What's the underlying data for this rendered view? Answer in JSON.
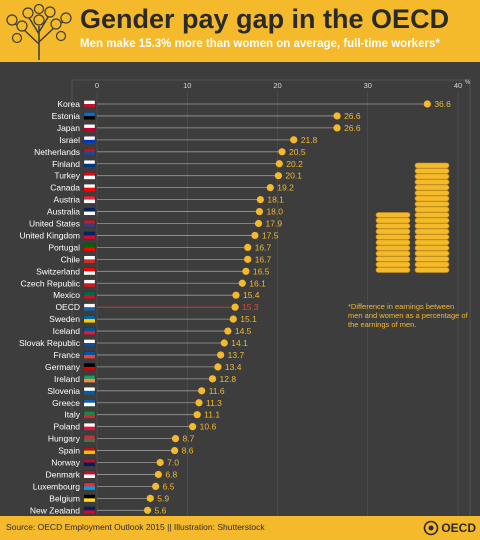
{
  "header": {
    "title": "Gender pay gap in the OECD",
    "subtitle": "Men make 15.3% more than women on average, full-time workers*"
  },
  "note": "*Difference in earnings between men and women as a percentage of the earnings of men.",
  "footer": {
    "source": "Source: OECD Employment Outlook 2015 || Illustration: Shutterstock",
    "logo_text": "OECD"
  },
  "colors": {
    "accent": "#f5ba2b",
    "background": "#3d3d3d",
    "highlight": "#e04a2a",
    "line": "#9a9a9a"
  },
  "chart_data": {
    "type": "scatter",
    "title": "Gender pay gap in the OECD",
    "xlim": [
      0,
      40
    ],
    "xticks": [
      0,
      10,
      20,
      30,
      40
    ],
    "xaxis_unit": "%",
    "highlight": "OECD",
    "categories": [
      "Korea",
      "Estonia",
      "Japan",
      "Israel",
      "Netherlands",
      "Finland",
      "Turkey",
      "Canada",
      "Austria",
      "Australia",
      "United States",
      "United Kingdom",
      "Portugal",
      "Chile",
      "Switzerland",
      "Czech Republic",
      "Mexico",
      "OECD",
      "Sweden",
      "Iceland",
      "Slovak Republic",
      "France",
      "Germany",
      "Ireland",
      "Slovenia",
      "Greece",
      "Italy",
      "Poland",
      "Hungary",
      "Spain",
      "Norway",
      "Denmark",
      "Luxembourg",
      "Belgium",
      "New Zealand"
    ],
    "values": [
      36.6,
      26.6,
      26.6,
      21.8,
      20.5,
      20.2,
      20.1,
      19.2,
      18.1,
      18.0,
      17.9,
      17.5,
      16.7,
      16.7,
      16.5,
      16.1,
      15.4,
      15.3,
      15.1,
      14.5,
      14.1,
      13.7,
      13.4,
      12.8,
      11.6,
      11.3,
      11.1,
      10.6,
      8.7,
      8.6,
      7.0,
      6.8,
      6.5,
      5.9,
      5.6
    ],
    "value_labels": [
      "36.6",
      "26.6",
      "26.6",
      "21.8",
      "20.5",
      "20.2",
      "20.1",
      "19.2",
      "18.1",
      "18.0",
      "17.9",
      "17.5",
      "16.7",
      "16.7",
      "16.5",
      "16.1",
      "15.4",
      "15.3",
      "15.1",
      "14.5",
      "14.1",
      "13.7",
      "13.4",
      "12.8",
      "11.6",
      "11.3",
      "11.1",
      "10.6",
      "8.7",
      "8.6",
      "7.0",
      "6.8",
      "6.5",
      "5.9",
      "5.6"
    ],
    "flag_colors": [
      [
        "#ffffff",
        "#c8102e"
      ],
      [
        "#0072ce",
        "#000000"
      ],
      [
        "#ffffff",
        "#bc002d"
      ],
      [
        "#ffffff",
        "#0038b8"
      ],
      [
        "#ae1c28",
        "#21468b"
      ],
      [
        "#ffffff",
        "#003580"
      ],
      [
        "#e30a17",
        "#ffffff"
      ],
      [
        "#ffffff",
        "#ff0000"
      ],
      [
        "#ed2939",
        "#ffffff"
      ],
      [
        "#012169",
        "#ffffff"
      ],
      [
        "#b22234",
        "#3c3b6e"
      ],
      [
        "#012169",
        "#c8102e"
      ],
      [
        "#006600",
        "#ff0000"
      ],
      [
        "#ffffff",
        "#d52b1e"
      ],
      [
        "#ff0000",
        "#ffffff"
      ],
      [
        "#ffffff",
        "#d7141a"
      ],
      [
        "#006847",
        "#ce1126"
      ],
      [
        "#ffffff",
        "#1a5fa8"
      ],
      [
        "#006aa7",
        "#fecc00"
      ],
      [
        "#02529c",
        "#dc1e35"
      ],
      [
        "#ffffff",
        "#0b4ea2"
      ],
      [
        "#0055a4",
        "#ef4135"
      ],
      [
        "#000000",
        "#dd0000"
      ],
      [
        "#169b62",
        "#ff883e"
      ],
      [
        "#ffffff",
        "#005da4"
      ],
      [
        "#0d5eaf",
        "#ffffff"
      ],
      [
        "#009246",
        "#ce2b37"
      ],
      [
        "#ffffff",
        "#dc143c"
      ],
      [
        "#ce2939",
        "#477050"
      ],
      [
        "#aa151b",
        "#f1bf00"
      ],
      [
        "#ba0c2f",
        "#00205b"
      ],
      [
        "#c60c30",
        "#ffffff"
      ],
      [
        "#ed2939",
        "#00a1de"
      ],
      [
        "#000000",
        "#fdda24"
      ],
      [
        "#012169",
        "#c8102e"
      ]
    ]
  }
}
